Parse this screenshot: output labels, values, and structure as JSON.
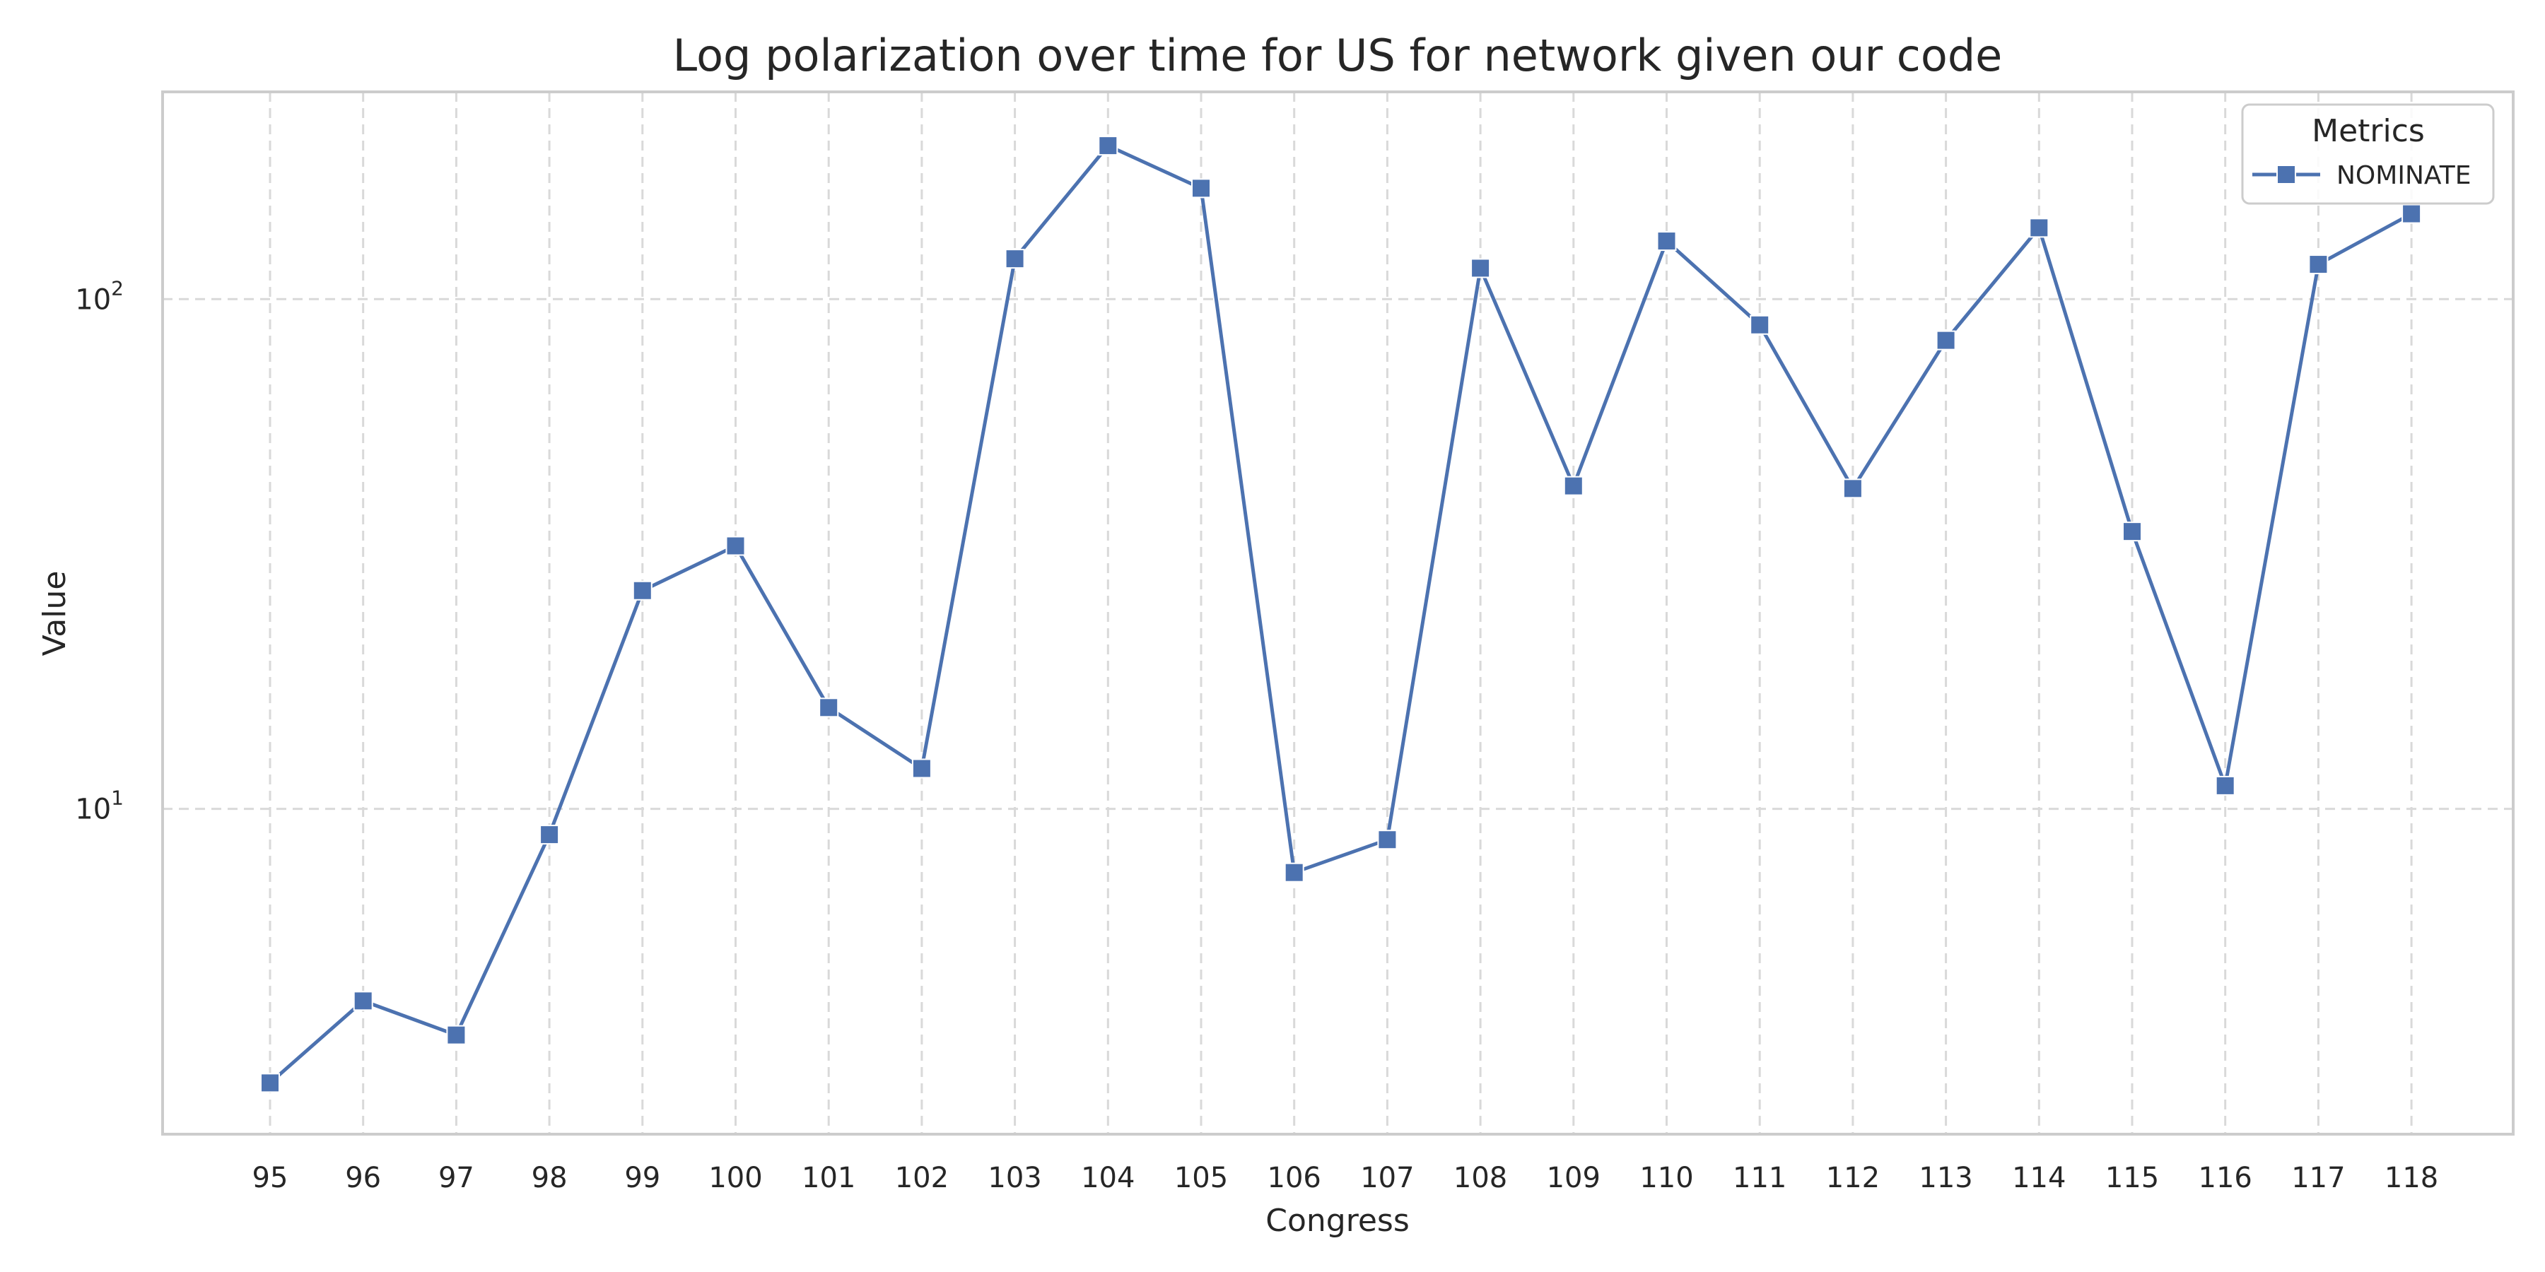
{
  "chart_data": {
    "type": "line",
    "title": "Log polarization over time for US for network given our code",
    "xlabel": "Congress",
    "ylabel": "Value",
    "yscale": "log",
    "ylim": [
      2.3,
      255
    ],
    "yticks": [
      {
        "value": 10,
        "base": "10",
        "exp": "1"
      },
      {
        "value": 100,
        "base": "10",
        "exp": "2"
      }
    ],
    "grid": true,
    "legend": {
      "title": "Metrics",
      "placement": "top-right"
    },
    "categories": [
      "95",
      "96",
      "97",
      "98",
      "99",
      "100",
      "101",
      "102",
      "103",
      "104",
      "105",
      "106",
      "107",
      "108",
      "109",
      "110",
      "111",
      "112",
      "113",
      "114",
      "115",
      "116",
      "117",
      "118"
    ],
    "series": [
      {
        "name": "NOMINATE",
        "color": "#4c72b0",
        "marker": "square",
        "values": [
          2.9,
          4.2,
          3.6,
          8.9,
          26.8,
          32.8,
          15.8,
          12.0,
          120,
          200,
          165,
          7.5,
          8.7,
          115,
          43,
          130,
          89,
          42.5,
          83,
          138,
          35,
          11.1,
          117,
          147
        ]
      }
    ]
  }
}
